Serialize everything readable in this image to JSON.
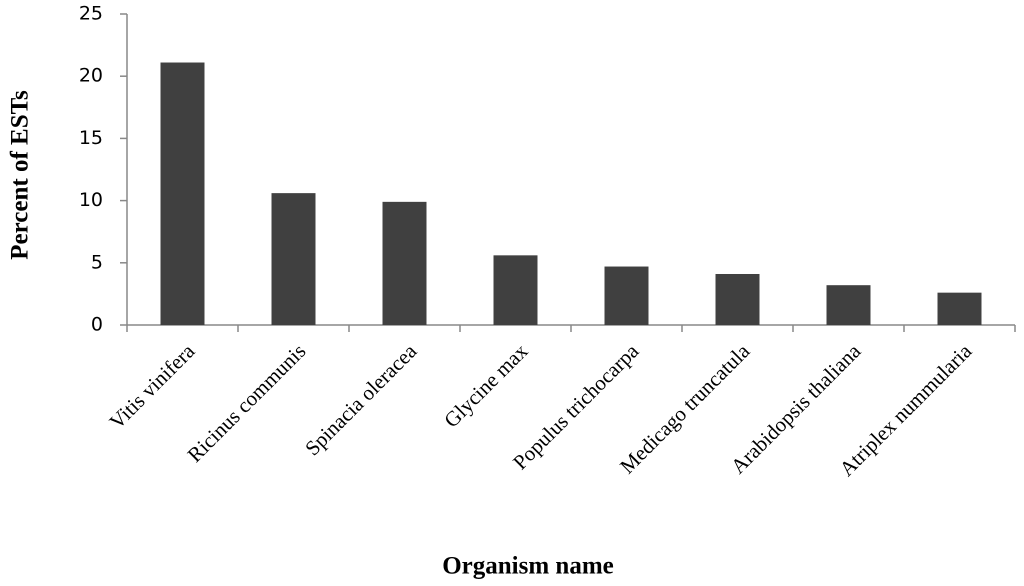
{
  "chart_data": {
    "type": "bar",
    "y_label": "Percent of ESTs",
    "x_label": "Organism name",
    "categories": [
      "Vitis vinifera",
      "Ricinus communis",
      "Spinacia oleracea",
      "Glycine max",
      "Populus trichocarpa",
      "Medicago truncatula",
      "Arabidopsis thaliana",
      "Atriplex nummularia"
    ],
    "values": [
      21.1,
      10.6,
      9.9,
      5.6,
      4.7,
      4.1,
      3.2,
      2.6
    ],
    "color": "#404040",
    "ylim": [
      0,
      25
    ],
    "yticks": [
      0,
      5,
      10,
      15,
      20,
      25
    ],
    "grid": false
  }
}
